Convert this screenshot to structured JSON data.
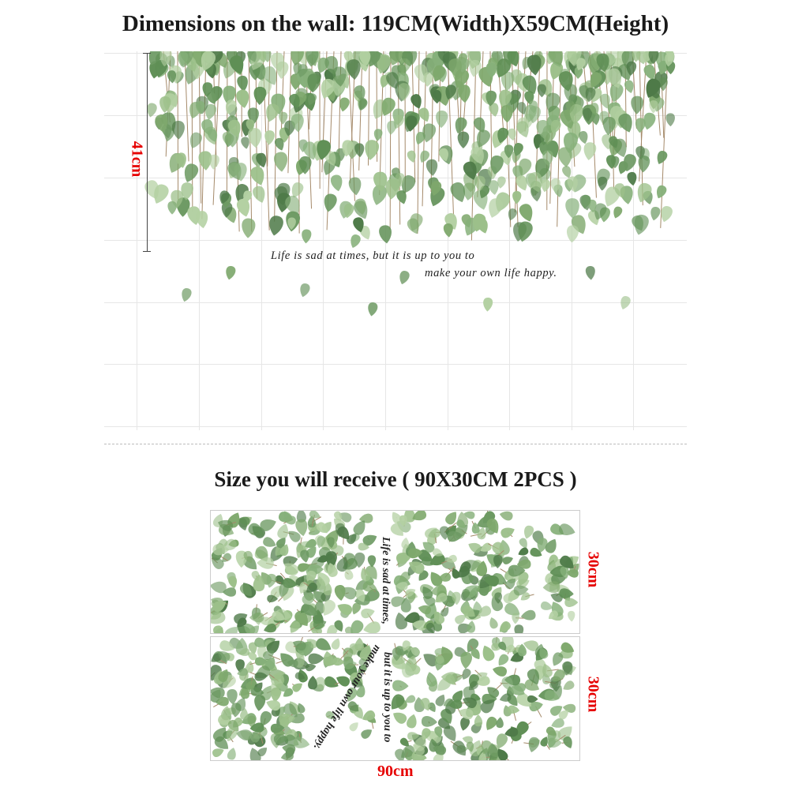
{
  "header": {
    "title": "Dimensions on the wall: 119CM(Width)X59CM(Height)"
  },
  "wall_preview": {
    "height_label": "41cm",
    "quote_line1": "Life is sad at times, but it is up to you to",
    "quote_line2": "make your own life happy."
  },
  "receive": {
    "title": "Size you will receive ( 90X30CM 2PCS )",
    "sheet_top_height": "30cm",
    "sheet_bottom_height": "30cm",
    "width_label": "90cm",
    "sheet_text_1": "Life is sad at times,",
    "sheet_text_2": "but it is up to you to",
    "sheet_text_3": "make your own life happy."
  },
  "colors": {
    "accent_red": "#e60000",
    "leaf_green": "#6e9a5e"
  }
}
